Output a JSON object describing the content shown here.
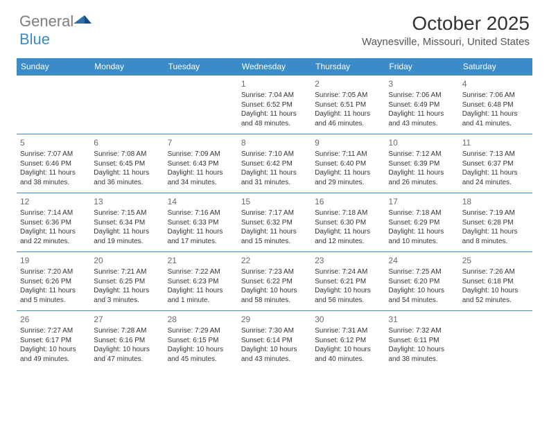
{
  "logo": {
    "general": "General",
    "blue": "Blue"
  },
  "title": "October 2025",
  "location": "Waynesville, Missouri, United States",
  "colors": {
    "header_bg": "#3b8bc8",
    "header_text": "#ffffff",
    "border": "#3b8bc8",
    "daynum": "#6a6a6a",
    "body_text": "#333333",
    "logo_gray": "#7d7d7d",
    "logo_blue": "#3b8bc8",
    "background": "#ffffff"
  },
  "weekdays": [
    "Sunday",
    "Monday",
    "Tuesday",
    "Wednesday",
    "Thursday",
    "Friday",
    "Saturday"
  ],
  "weeks": [
    [
      null,
      null,
      null,
      {
        "n": "1",
        "sr": "Sunrise: 7:04 AM",
        "ss": "Sunset: 6:52 PM",
        "dl": "Daylight: 11 hours and 48 minutes."
      },
      {
        "n": "2",
        "sr": "Sunrise: 7:05 AM",
        "ss": "Sunset: 6:51 PM",
        "dl": "Daylight: 11 hours and 46 minutes."
      },
      {
        "n": "3",
        "sr": "Sunrise: 7:06 AM",
        "ss": "Sunset: 6:49 PM",
        "dl": "Daylight: 11 hours and 43 minutes."
      },
      {
        "n": "4",
        "sr": "Sunrise: 7:06 AM",
        "ss": "Sunset: 6:48 PM",
        "dl": "Daylight: 11 hours and 41 minutes."
      }
    ],
    [
      {
        "n": "5",
        "sr": "Sunrise: 7:07 AM",
        "ss": "Sunset: 6:46 PM",
        "dl": "Daylight: 11 hours and 38 minutes."
      },
      {
        "n": "6",
        "sr": "Sunrise: 7:08 AM",
        "ss": "Sunset: 6:45 PM",
        "dl": "Daylight: 11 hours and 36 minutes."
      },
      {
        "n": "7",
        "sr": "Sunrise: 7:09 AM",
        "ss": "Sunset: 6:43 PM",
        "dl": "Daylight: 11 hours and 34 minutes."
      },
      {
        "n": "8",
        "sr": "Sunrise: 7:10 AM",
        "ss": "Sunset: 6:42 PM",
        "dl": "Daylight: 11 hours and 31 minutes."
      },
      {
        "n": "9",
        "sr": "Sunrise: 7:11 AM",
        "ss": "Sunset: 6:40 PM",
        "dl": "Daylight: 11 hours and 29 minutes."
      },
      {
        "n": "10",
        "sr": "Sunrise: 7:12 AM",
        "ss": "Sunset: 6:39 PM",
        "dl": "Daylight: 11 hours and 26 minutes."
      },
      {
        "n": "11",
        "sr": "Sunrise: 7:13 AM",
        "ss": "Sunset: 6:37 PM",
        "dl": "Daylight: 11 hours and 24 minutes."
      }
    ],
    [
      {
        "n": "12",
        "sr": "Sunrise: 7:14 AM",
        "ss": "Sunset: 6:36 PM",
        "dl": "Daylight: 11 hours and 22 minutes."
      },
      {
        "n": "13",
        "sr": "Sunrise: 7:15 AM",
        "ss": "Sunset: 6:34 PM",
        "dl": "Daylight: 11 hours and 19 minutes."
      },
      {
        "n": "14",
        "sr": "Sunrise: 7:16 AM",
        "ss": "Sunset: 6:33 PM",
        "dl": "Daylight: 11 hours and 17 minutes."
      },
      {
        "n": "15",
        "sr": "Sunrise: 7:17 AM",
        "ss": "Sunset: 6:32 PM",
        "dl": "Daylight: 11 hours and 15 minutes."
      },
      {
        "n": "16",
        "sr": "Sunrise: 7:18 AM",
        "ss": "Sunset: 6:30 PM",
        "dl": "Daylight: 11 hours and 12 minutes."
      },
      {
        "n": "17",
        "sr": "Sunrise: 7:18 AM",
        "ss": "Sunset: 6:29 PM",
        "dl": "Daylight: 11 hours and 10 minutes."
      },
      {
        "n": "18",
        "sr": "Sunrise: 7:19 AM",
        "ss": "Sunset: 6:28 PM",
        "dl": "Daylight: 11 hours and 8 minutes."
      }
    ],
    [
      {
        "n": "19",
        "sr": "Sunrise: 7:20 AM",
        "ss": "Sunset: 6:26 PM",
        "dl": "Daylight: 11 hours and 5 minutes."
      },
      {
        "n": "20",
        "sr": "Sunrise: 7:21 AM",
        "ss": "Sunset: 6:25 PM",
        "dl": "Daylight: 11 hours and 3 minutes."
      },
      {
        "n": "21",
        "sr": "Sunrise: 7:22 AM",
        "ss": "Sunset: 6:23 PM",
        "dl": "Daylight: 11 hours and 1 minute."
      },
      {
        "n": "22",
        "sr": "Sunrise: 7:23 AM",
        "ss": "Sunset: 6:22 PM",
        "dl": "Daylight: 10 hours and 58 minutes."
      },
      {
        "n": "23",
        "sr": "Sunrise: 7:24 AM",
        "ss": "Sunset: 6:21 PM",
        "dl": "Daylight: 10 hours and 56 minutes."
      },
      {
        "n": "24",
        "sr": "Sunrise: 7:25 AM",
        "ss": "Sunset: 6:20 PM",
        "dl": "Daylight: 10 hours and 54 minutes."
      },
      {
        "n": "25",
        "sr": "Sunrise: 7:26 AM",
        "ss": "Sunset: 6:18 PM",
        "dl": "Daylight: 10 hours and 52 minutes."
      }
    ],
    [
      {
        "n": "26",
        "sr": "Sunrise: 7:27 AM",
        "ss": "Sunset: 6:17 PM",
        "dl": "Daylight: 10 hours and 49 minutes."
      },
      {
        "n": "27",
        "sr": "Sunrise: 7:28 AM",
        "ss": "Sunset: 6:16 PM",
        "dl": "Daylight: 10 hours and 47 minutes."
      },
      {
        "n": "28",
        "sr": "Sunrise: 7:29 AM",
        "ss": "Sunset: 6:15 PM",
        "dl": "Daylight: 10 hours and 45 minutes."
      },
      {
        "n": "29",
        "sr": "Sunrise: 7:30 AM",
        "ss": "Sunset: 6:14 PM",
        "dl": "Daylight: 10 hours and 43 minutes."
      },
      {
        "n": "30",
        "sr": "Sunrise: 7:31 AM",
        "ss": "Sunset: 6:12 PM",
        "dl": "Daylight: 10 hours and 40 minutes."
      },
      {
        "n": "31",
        "sr": "Sunrise: 7:32 AM",
        "ss": "Sunset: 6:11 PM",
        "dl": "Daylight: 10 hours and 38 minutes."
      },
      null
    ]
  ]
}
